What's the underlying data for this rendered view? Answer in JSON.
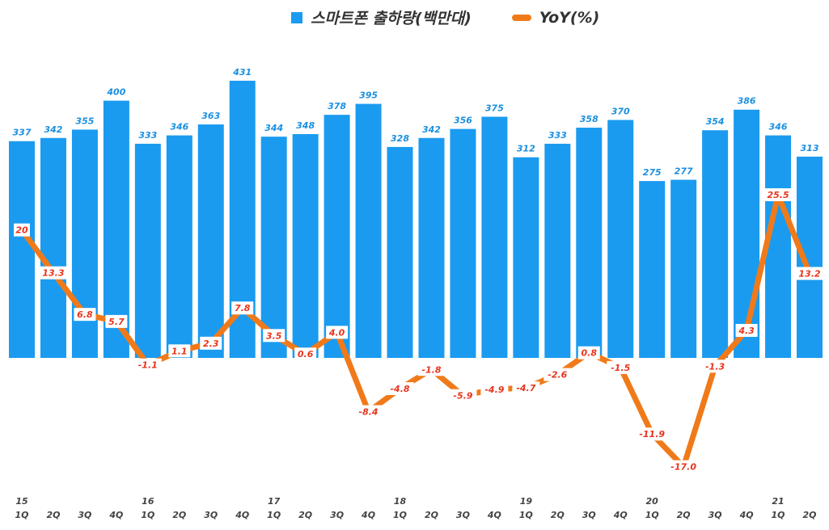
{
  "chart_data": {
    "type": "bar+line",
    "categories": [
      "15 1Q",
      "2Q",
      "3Q",
      "4Q",
      "16 1Q",
      "2Q",
      "3Q",
      "4Q",
      "17 1Q",
      "2Q",
      "3Q",
      "4Q",
      "18 1Q",
      "2Q",
      "3Q",
      "4Q",
      "19 1Q",
      "2Q",
      "3Q",
      "4Q",
      "20 1Q",
      "2Q",
      "3Q",
      "4Q",
      "21 1Q",
      "2Q"
    ],
    "year_labels": [
      "15",
      "",
      "",
      "",
      "16",
      "",
      "",
      "",
      "17",
      "",
      "",
      "",
      "18",
      "",
      "",
      "",
      "19",
      "",
      "",
      "",
      "20",
      "",
      "",
      "",
      "21",
      ""
    ],
    "quarter_labels": [
      "1Q",
      "2Q",
      "3Q",
      "4Q",
      "1Q",
      "2Q",
      "3Q",
      "4Q",
      "1Q",
      "2Q",
      "3Q",
      "4Q",
      "1Q",
      "2Q",
      "3Q",
      "4Q",
      "1Q",
      "2Q",
      "3Q",
      "4Q",
      "1Q",
      "2Q",
      "3Q",
      "4Q",
      "1Q",
      "2Q"
    ],
    "series": [
      {
        "name": "스마트폰 출하량(백만대)",
        "type": "bar",
        "color": "#1a9bf0",
        "values": [
          337,
          342,
          355,
          400,
          333,
          346,
          363,
          431,
          344,
          348,
          378,
          395,
          328,
          342,
          356,
          375,
          312,
          333,
          358,
          370,
          275,
          277,
          354,
          386,
          346,
          313
        ]
      },
      {
        "name": "YoY(%)",
        "type": "line",
        "color": "#f07a1a",
        "values": [
          20,
          13.3,
          6.8,
          5.7,
          -1.1,
          1.1,
          2.3,
          7.8,
          3.5,
          0.6,
          4.0,
          -8.4,
          -4.8,
          -1.8,
          -5.9,
          -4.9,
          -4.7,
          -2.6,
          0.8,
          -1.5,
          -11.9,
          -17.0,
          -1.3,
          4.3,
          25.5,
          13.2
        ],
        "labels": [
          "20",
          "13.3",
          "6.8",
          "5.7",
          "-1.1",
          "1.1",
          "2.3",
          "7.8",
          "3.5",
          "0.6",
          "4.0",
          "-8.4",
          "-4.8",
          "-1.8",
          "-5.9",
          "-4.9",
          "-4.7",
          "-2.6",
          "0.8",
          "-1.5",
          "-11.9",
          "-17.0",
          "-1.3",
          "4.3",
          "25.5",
          "13.2"
        ]
      }
    ],
    "legend_position": "top",
    "grid": false
  }
}
